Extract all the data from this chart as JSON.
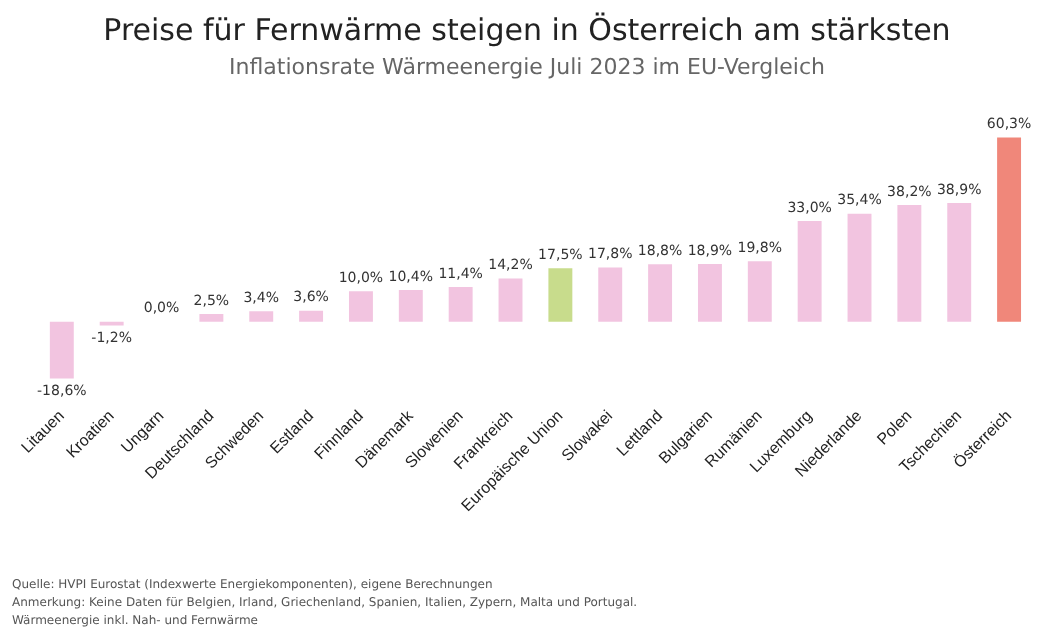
{
  "chart_data": {
    "type": "bar",
    "title": "Preise für Fernwärme steigen in Österreich am stärksten",
    "subtitle": "Inflationsrate Wärmeenergie Juli 2023 im EU-Vergleich",
    "categories": [
      "Litauen",
      "Kroatien",
      "Ungarn",
      "Deutschland",
      "Schweden",
      "Estland",
      "Finnland",
      "Dänemark",
      "Slowenien",
      "Frankreich",
      "Europäische Union",
      "Slowakei",
      "Lettland",
      "Bulgarien",
      "Rumänien",
      "Luxemburg",
      "Niederlande",
      "Polen",
      "Tschechien",
      "Österreich"
    ],
    "values": [
      -18.6,
      -1.2,
      0.0,
      2.5,
      3.4,
      3.6,
      10.0,
      10.4,
      11.4,
      14.2,
      17.5,
      17.8,
      18.8,
      18.9,
      19.8,
      33.0,
      35.4,
      38.2,
      38.9,
      60.3
    ],
    "value_labels": [
      "-18,6%",
      "-1,2%",
      "0,0%",
      "2,5%",
      "3,4%",
      "3,6%",
      "10,0%",
      "10,4%",
      "11,4%",
      "14,2%",
      "17,5%",
      "17,8%",
      "18,8%",
      "18,9%",
      "19,8%",
      "33,0%",
      "35,4%",
      "38,2%",
      "38,9%",
      "60,3%"
    ],
    "colors": [
      "#f2c4e0",
      "#f2c4e0",
      "#f2c4e0",
      "#f2c4e0",
      "#f2c4e0",
      "#f2c4e0",
      "#f2c4e0",
      "#f2c4e0",
      "#f2c4e0",
      "#f2c4e0",
      "#c8dc8c",
      "#f2c4e0",
      "#f2c4e0",
      "#f2c4e0",
      "#f2c4e0",
      "#f2c4e0",
      "#f2c4e0",
      "#f2c4e0",
      "#f2c4e0",
      "#f0877a"
    ],
    "relative": false,
    "grid": false,
    "legend": false,
    "annotations": [
      "Quelle: HVPI Eurostat (Indexwerte Energiekomponenten), eigene Berechnungen",
      "Anmerkung: Keine Daten für Belgien, Irland, Griechenland, Spanien, Italien, Zypern, Malta und Portugal.",
      "Wärmeenergie inkl. Nah- und Fernwärme"
    ]
  }
}
